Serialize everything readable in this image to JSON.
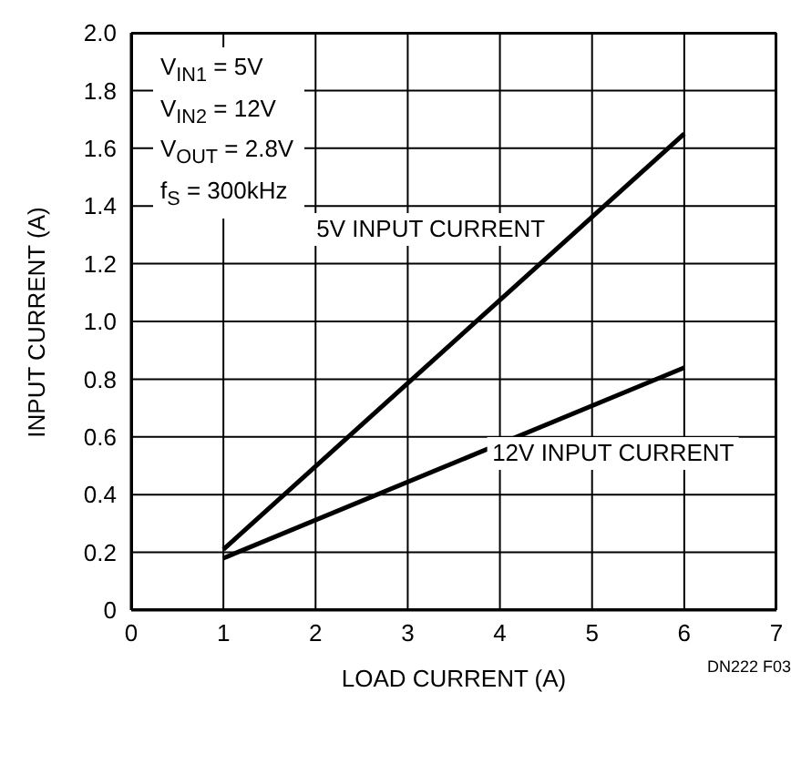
{
  "chart_data": {
    "type": "line",
    "xlabel": "LOAD CURRENT (A)",
    "ylabel": "INPUT CURRENT (A)",
    "x": [
      1,
      6
    ],
    "series": [
      {
        "name": "5V INPUT CURRENT",
        "color": "#000000",
        "values": [
          0.21,
          1.65
        ]
      },
      {
        "name": "12V INPUT CURRENT",
        "color": "#000000",
        "values": [
          0.18,
          0.84
        ]
      }
    ],
    "xlim": [
      0,
      7
    ],
    "xticks": [
      0,
      1,
      2,
      3,
      4,
      5,
      6,
      7
    ],
    "ylim": [
      0,
      2
    ],
    "yticks": [
      0,
      0.2,
      0.4,
      0.6,
      0.8,
      {
        "value": 1,
        "label": "1.0"
      },
      1.2,
      1.4,
      1.6,
      1.8,
      {
        "value": 2,
        "label": "2.0"
      }
    ],
    "grid": true,
    "legend": false,
    "marker": "none",
    "line_style": "solid",
    "annotations": [
      "V$_{IN1}$ = 5V",
      "V$_{IN2}$ = 12V",
      "V$_{OUT}$ = 2.8V",
      "f$_{S}$ = 300kHz",
      "DN222 F03"
    ]
  }
}
